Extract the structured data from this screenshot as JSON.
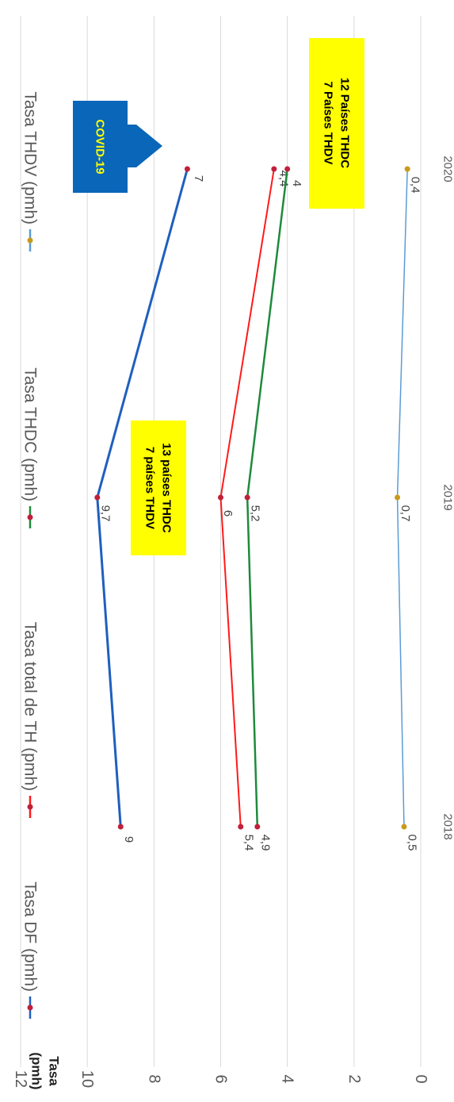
{
  "chart_data": {
    "type": "line",
    "orientation": "rotated-90-clockwise",
    "ylabel": "Tasa\n(pmh)",
    "ylim": [
      0,
      12
    ],
    "yticks": [
      "0",
      "2",
      "4",
      "6",
      "8",
      "10",
      "12"
    ],
    "categories": [
      "2018",
      "2019",
      "2020"
    ],
    "grid": true,
    "legend_position": "top",
    "series": [
      {
        "name": "Tasa DF (pmh)",
        "color": "#1F5FBF",
        "marker": "#C0203A",
        "width": 3,
        "values": [
          9,
          9.7,
          7
        ],
        "labels": [
          "9",
          "9,7",
          "7"
        ]
      },
      {
        "name": "Tasa total de TH (pmh)",
        "color": "#FF1A1A",
        "marker": "#C0203A",
        "width": 2,
        "values": [
          5.4,
          6,
          4.4
        ],
        "labels": [
          "5,4",
          "6",
          "4,4"
        ]
      },
      {
        "name": "Tasa THDC (pmh)",
        "color": "#1E8A3C",
        "marker": "#C0203A",
        "width": 2.5,
        "values": [
          4.9,
          5.2,
          4
        ],
        "labels": [
          "4,9",
          "5,2",
          "4"
        ]
      },
      {
        "name": "Tasa THDV (pmh)",
        "color": "#5B9BD5",
        "marker": "#C99A1A",
        "width": 1.5,
        "values": [
          0.5,
          0.7,
          0.4
        ],
        "labels": [
          "0,5",
          "0,7",
          "0,4"
        ]
      }
    ],
    "annotations": [
      {
        "id": "note-2019",
        "lines": [
          "13 países THDC",
          "7 países  THDV"
        ],
        "background": "#FFFF00"
      },
      {
        "id": "note-2020",
        "lines": [
          "12  Países THDC",
          "7  Países THDV"
        ],
        "background": "#FFFF00"
      },
      {
        "id": "covid-arrow",
        "lines": [
          "COVID-19"
        ],
        "background": "#0A66B8",
        "color": "#FFFF00"
      }
    ]
  }
}
